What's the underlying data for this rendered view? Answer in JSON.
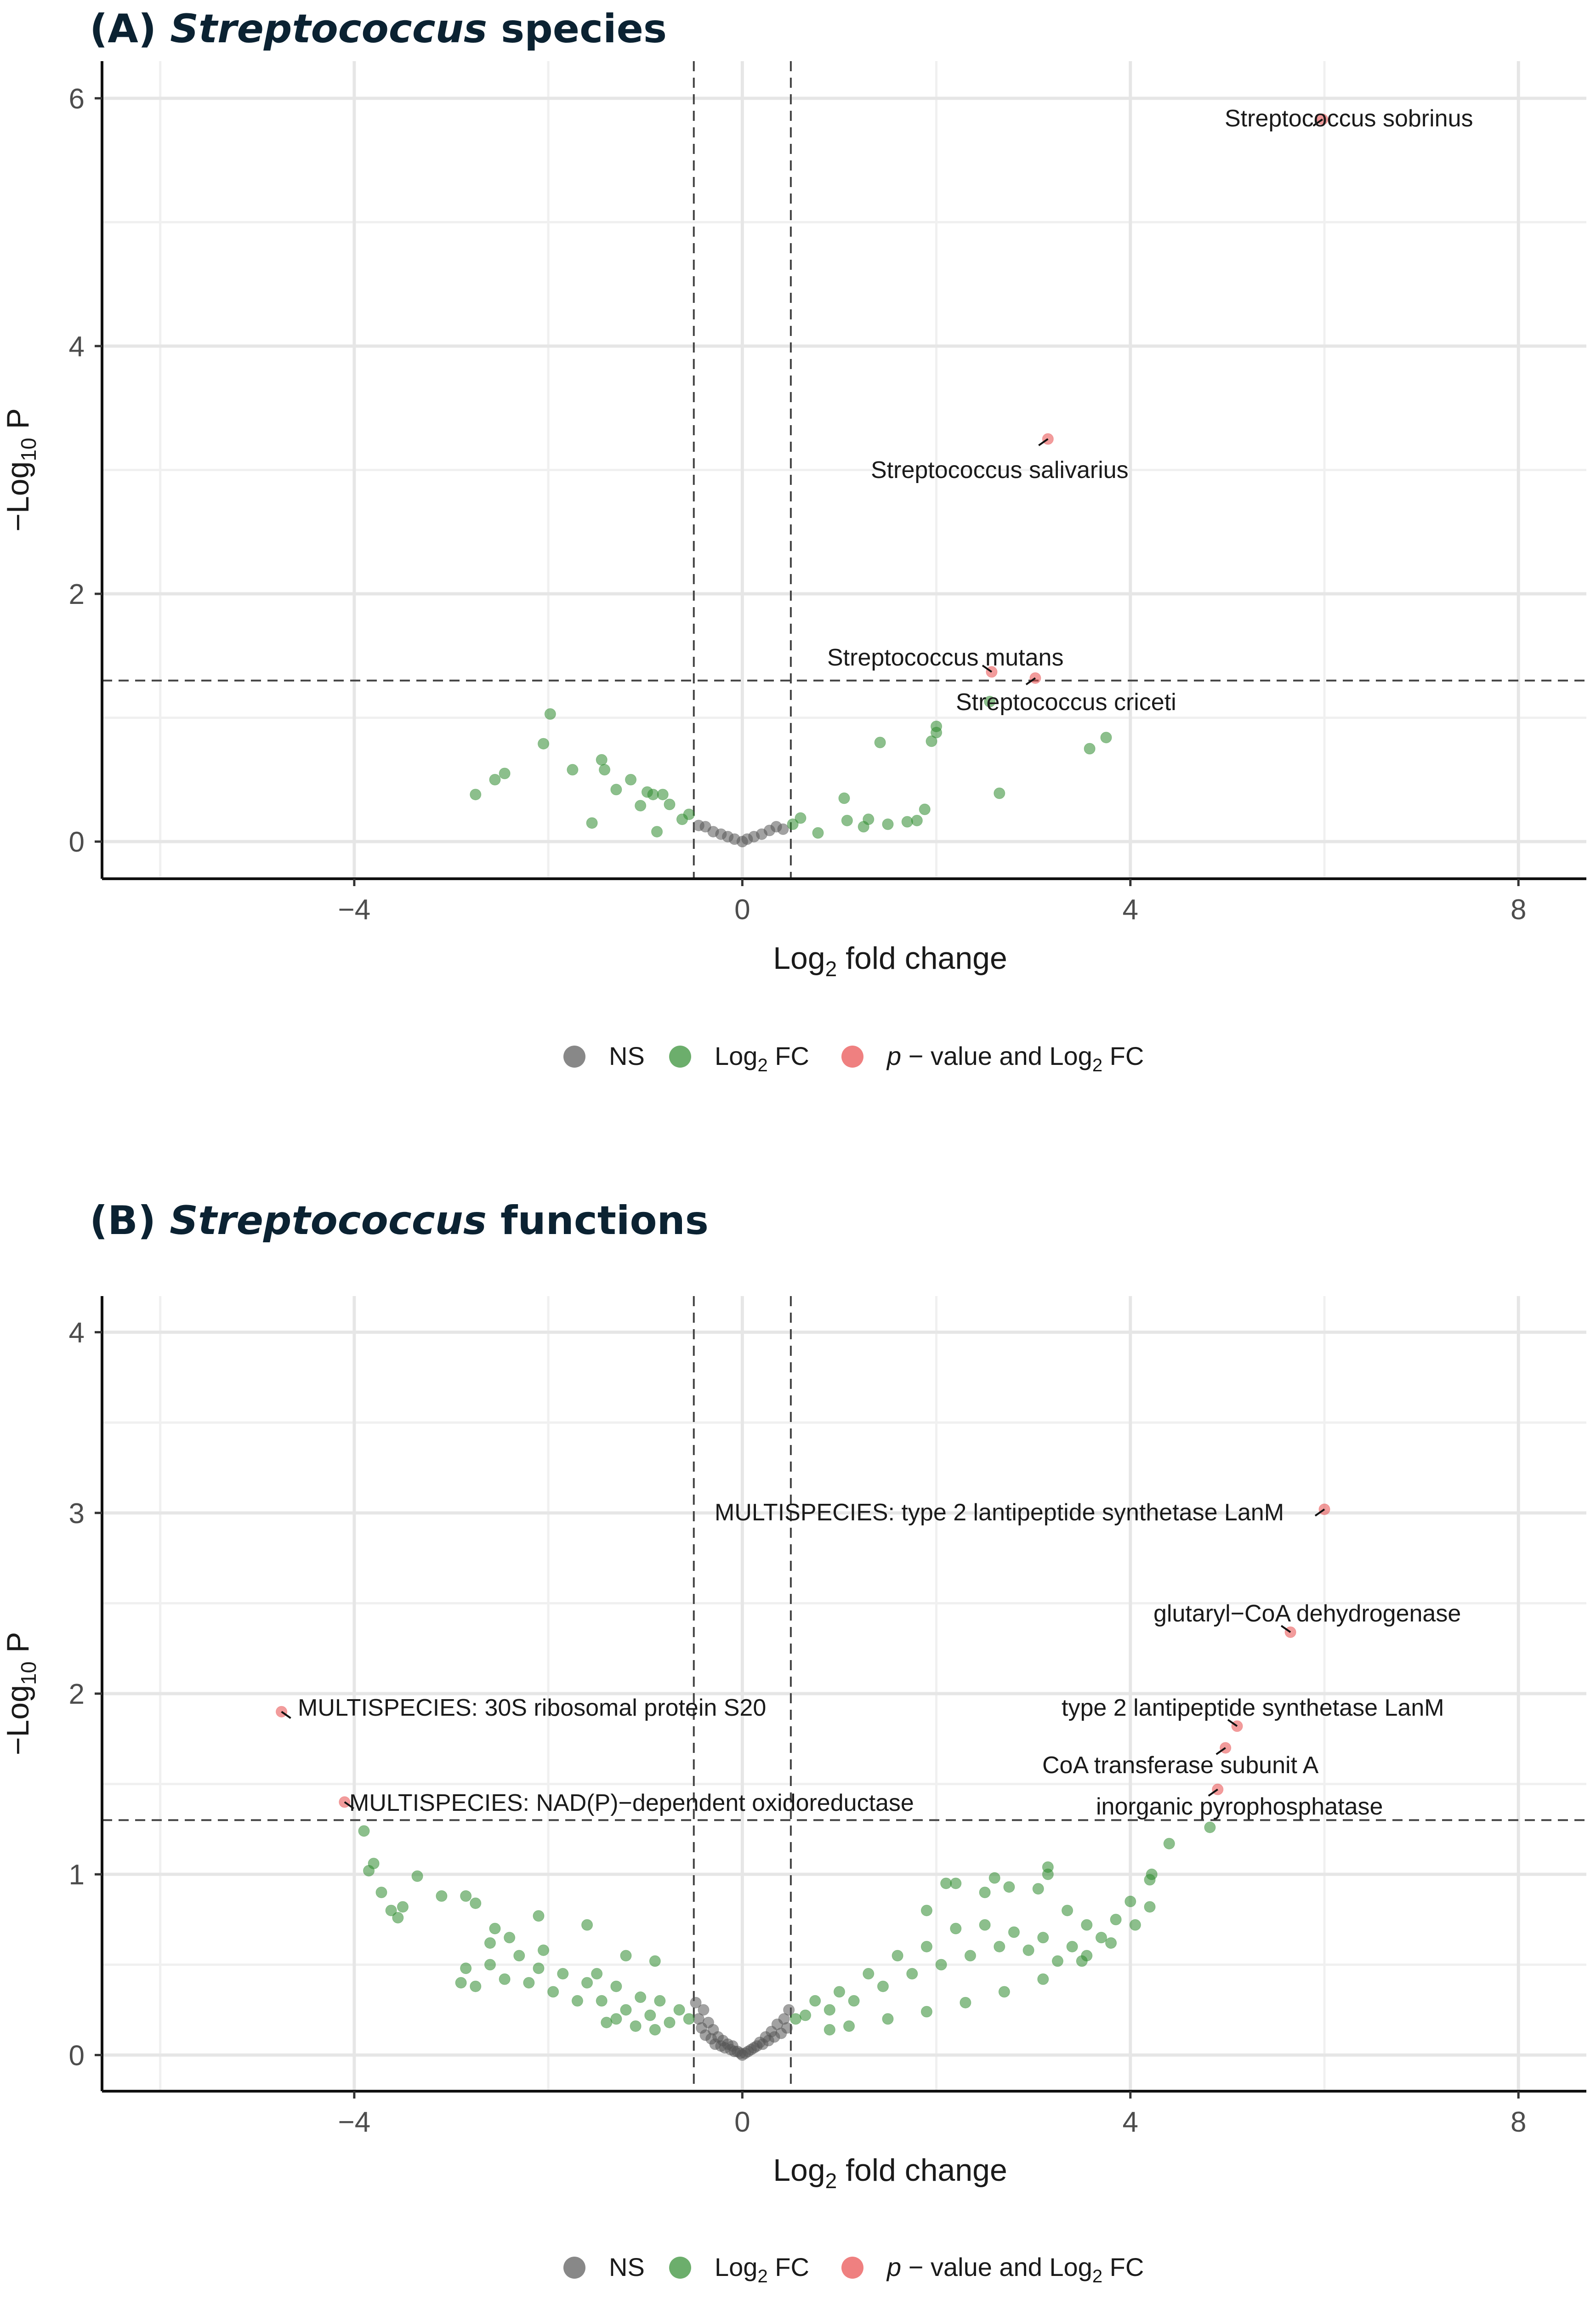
{
  "chart_data": [
    {
      "type": "scatter",
      "title_prefix": "(A) ",
      "title_italic": "Streptococcus",
      "title_suffix": " species",
      "xlabel": "Log",
      "xlabel_sub": "2",
      "xlabel_rest": " fold change",
      "ylabel": "−Log",
      "ylabel_sub": "10",
      "ylabel_rest": " P",
      "xlim": [
        -6.6,
        8.7
      ],
      "ylim": [
        -0.3,
        6.3
      ],
      "xticks": [
        -4,
        0,
        4,
        8
      ],
      "xtick_labels": [
        "−4",
        "0",
        "4",
        "8"
      ],
      "yticks": [
        0,
        2,
        4,
        6
      ],
      "ytick_labels": [
        "0",
        "2",
        "4",
        "6"
      ],
      "fc_cutoffs": [
        -0.5,
        0.5
      ],
      "p_cutoff": 1.3,
      "series": [
        {
          "name": "NS",
          "color": "#555555",
          "points": [
            [
              -0.45,
              0.13
            ],
            [
              -0.38,
              0.12
            ],
            [
              -0.3,
              0.08
            ],
            [
              -0.22,
              0.06
            ],
            [
              -0.15,
              0.04
            ],
            [
              -0.08,
              0.02
            ],
            [
              0.0,
              0.0
            ],
            [
              0.05,
              0.02
            ],
            [
              0.12,
              0.04
            ],
            [
              0.2,
              0.06
            ],
            [
              0.28,
              0.09
            ],
            [
              0.35,
              0.12
            ],
            [
              0.42,
              0.1
            ]
          ]
        },
        {
          "name": "Log2 FC",
          "color": "#2e8b2e",
          "points": [
            [
              -2.75,
              0.38
            ],
            [
              -2.55,
              0.5
            ],
            [
              -2.45,
              0.55
            ],
            [
              -2.05,
              0.79
            ],
            [
              -1.98,
              1.03
            ],
            [
              -1.75,
              0.58
            ],
            [
              -1.55,
              0.15
            ],
            [
              -1.45,
              0.66
            ],
            [
              -1.42,
              0.58
            ],
            [
              -1.3,
              0.42
            ],
            [
              -1.15,
              0.5
            ],
            [
              -1.05,
              0.29
            ],
            [
              -0.98,
              0.4
            ],
            [
              -0.92,
              0.38
            ],
            [
              -0.88,
              0.08
            ],
            [
              -0.82,
              0.38
            ],
            [
              -0.75,
              0.3
            ],
            [
              -0.62,
              0.18
            ],
            [
              -0.55,
              0.22
            ],
            [
              0.52,
              0.14
            ],
            [
              0.6,
              0.19
            ],
            [
              0.78,
              0.07
            ],
            [
              1.05,
              0.35
            ],
            [
              1.08,
              0.17
            ],
            [
              1.25,
              0.12
            ],
            [
              1.3,
              0.18
            ],
            [
              1.42,
              0.8
            ],
            [
              1.5,
              0.14
            ],
            [
              1.7,
              0.16
            ],
            [
              1.8,
              0.17
            ],
            [
              1.88,
              0.26
            ],
            [
              1.95,
              0.81
            ],
            [
              2.0,
              0.88
            ],
            [
              2.0,
              0.93
            ],
            [
              2.55,
              1.13
            ],
            [
              2.65,
              0.39
            ],
            [
              3.58,
              0.75
            ],
            [
              3.75,
              0.84
            ]
          ]
        },
        {
          "name": "p - value and Log2 FC",
          "color": "#e84a4a",
          "points": [
            [
              5.98,
              5.83
            ],
            [
              3.15,
              3.25
            ],
            [
              2.57,
              1.37
            ],
            [
              3.02,
              1.32
            ]
          ]
        }
      ],
      "annotations": [
        {
          "text": "Streptococcus sobrinus",
          "x": 5.98,
          "y": 5.83
        },
        {
          "text": "Streptococcus salivarius",
          "x": 3.15,
          "y": 3.25
        },
        {
          "text": "Streptococcus mutans",
          "x": 2.57,
          "y": 1.37
        },
        {
          "text": "Streptococcus criceti",
          "x": 3.02,
          "y": 1.32
        }
      ]
    },
    {
      "type": "scatter",
      "title_prefix": "(B) ",
      "title_italic": "Streptococcus",
      "title_suffix": " functions",
      "xlabel": "Log",
      "xlabel_sub": "2",
      "xlabel_rest": " fold change",
      "ylabel": "−Log",
      "ylabel_sub": "10",
      "ylabel_rest": " P",
      "xlim": [
        -6.6,
        8.7
      ],
      "ylim": [
        -0.2,
        4.2
      ],
      "xticks": [
        -4,
        0,
        4,
        8
      ],
      "xtick_labels": [
        "−4",
        "0",
        "4",
        "8"
      ],
      "yticks": [
        0,
        1,
        2,
        3,
        4
      ],
      "ytick_labels": [
        "0",
        "1",
        "2",
        "3",
        "4"
      ],
      "fc_cutoffs": [
        -0.5,
        0.5
      ],
      "p_cutoff": 1.3,
      "series": [
        {
          "name": "NS",
          "color": "#555555",
          "points": [
            [
              -0.48,
              0.29
            ],
            [
              -0.45,
              0.2
            ],
            [
              -0.42,
              0.15
            ],
            [
              -0.4,
              0.25
            ],
            [
              -0.38,
              0.11
            ],
            [
              -0.35,
              0.18
            ],
            [
              -0.32,
              0.09
            ],
            [
              -0.3,
              0.14
            ],
            [
              -0.28,
              0.06
            ],
            [
              -0.25,
              0.1
            ],
            [
              -0.22,
              0.05
            ],
            [
              -0.2,
              0.08
            ],
            [
              -0.18,
              0.04
            ],
            [
              -0.15,
              0.06
            ],
            [
              -0.12,
              0.03
            ],
            [
              -0.1,
              0.05
            ],
            [
              -0.08,
              0.02
            ],
            [
              -0.05,
              0.02
            ],
            [
              -0.02,
              0.01
            ],
            [
              0.0,
              0.0
            ],
            [
              0.03,
              0.01
            ],
            [
              0.06,
              0.02
            ],
            [
              0.09,
              0.03
            ],
            [
              0.12,
              0.04
            ],
            [
              0.15,
              0.05
            ],
            [
              0.18,
              0.07
            ],
            [
              0.21,
              0.06
            ],
            [
              0.24,
              0.1
            ],
            [
              0.27,
              0.08
            ],
            [
              0.3,
              0.13
            ],
            [
              0.33,
              0.1
            ],
            [
              0.36,
              0.17
            ],
            [
              0.4,
              0.12
            ],
            [
              0.43,
              0.2
            ],
            [
              0.46,
              0.15
            ],
            [
              0.48,
              0.25
            ]
          ]
        },
        {
          "name": "Log2 FC",
          "color": "#2e8b2e",
          "points": [
            [
              -3.9,
              1.24
            ],
            [
              -3.85,
              1.02
            ],
            [
              -3.8,
              1.06
            ],
            [
              -3.72,
              0.9
            ],
            [
              -3.62,
              0.8
            ],
            [
              -3.55,
              0.76
            ],
            [
              -3.5,
              0.82
            ],
            [
              -3.35,
              0.99
            ],
            [
              -3.1,
              0.88
            ],
            [
              -2.85,
              0.88
            ],
            [
              -2.75,
              0.84
            ],
            [
              -2.6,
              0.62
            ],
            [
              -2.55,
              0.7
            ],
            [
              -2.4,
              0.65
            ],
            [
              -2.1,
              0.77
            ],
            [
              -2.05,
              0.58
            ],
            [
              -1.6,
              0.72
            ],
            [
              -1.5,
              0.45
            ],
            [
              -1.2,
              0.55
            ],
            [
              -0.9,
              0.52
            ],
            [
              -2.9,
              0.4
            ],
            [
              -2.85,
              0.48
            ],
            [
              -2.75,
              0.38
            ],
            [
              -2.6,
              0.5
            ],
            [
              -2.45,
              0.42
            ],
            [
              -2.3,
              0.55
            ],
            [
              -2.2,
              0.4
            ],
            [
              -2.1,
              0.48
            ],
            [
              -1.95,
              0.35
            ],
            [
              -1.85,
              0.45
            ],
            [
              -1.7,
              0.3
            ],
            [
              -1.6,
              0.4
            ],
            [
              -1.45,
              0.3
            ],
            [
              -1.3,
              0.38
            ],
            [
              -1.2,
              0.25
            ],
            [
              -1.05,
              0.32
            ],
            [
              -0.95,
              0.22
            ],
            [
              -0.85,
              0.3
            ],
            [
              -0.75,
              0.18
            ],
            [
              -0.65,
              0.25
            ],
            [
              -0.55,
              0.2
            ],
            [
              0.55,
              0.2
            ],
            [
              0.65,
              0.22
            ],
            [
              0.75,
              0.3
            ],
            [
              0.9,
              0.25
            ],
            [
              1.0,
              0.35
            ],
            [
              1.15,
              0.3
            ],
            [
              1.3,
              0.45
            ],
            [
              1.45,
              0.38
            ],
            [
              1.6,
              0.55
            ],
            [
              1.75,
              0.45
            ],
            [
              1.9,
              0.6
            ],
            [
              2.05,
              0.5
            ],
            [
              2.2,
              0.7
            ],
            [
              2.35,
              0.55
            ],
            [
              2.5,
              0.72
            ],
            [
              2.65,
              0.6
            ],
            [
              2.8,
              0.68
            ],
            [
              2.95,
              0.58
            ],
            [
              3.1,
              0.65
            ],
            [
              3.25,
              0.52
            ],
            [
              3.4,
              0.6
            ],
            [
              3.55,
              0.55
            ],
            [
              3.7,
              0.65
            ],
            [
              3.85,
              0.75
            ],
            [
              4.0,
              0.85
            ],
            [
              2.5,
              0.9
            ],
            [
              2.6,
              0.98
            ],
            [
              2.75,
              0.93
            ],
            [
              3.05,
              0.92
            ],
            [
              3.15,
              1.0
            ],
            [
              3.15,
              1.04
            ],
            [
              3.35,
              0.8
            ],
            [
              3.55,
              0.72
            ],
            [
              2.1,
              0.95
            ],
            [
              2.2,
              0.95
            ],
            [
              1.9,
              0.8
            ],
            [
              4.2,
              0.97
            ],
            [
              4.22,
              1.0
            ],
            [
              4.4,
              1.17
            ],
            [
              4.82,
              1.26
            ],
            [
              -1.4,
              0.18
            ],
            [
              -1.3,
              0.2
            ],
            [
              -1.1,
              0.16
            ],
            [
              -0.9,
              0.14
            ],
            [
              0.9,
              0.14
            ],
            [
              1.1,
              0.16
            ],
            [
              1.5,
              0.2
            ],
            [
              1.9,
              0.24
            ],
            [
              2.3,
              0.29
            ],
            [
              2.7,
              0.35
            ],
            [
              3.1,
              0.42
            ],
            [
              3.5,
              0.52
            ],
            [
              3.8,
              0.62
            ],
            [
              4.05,
              0.72
            ],
            [
              4.2,
              0.82
            ]
          ]
        },
        {
          "name": "p - value and Log2 FC",
          "color": "#e84a4a",
          "points": [
            [
              -4.75,
              1.9
            ],
            [
              -4.1,
              1.4
            ],
            [
              6.0,
              3.02
            ],
            [
              5.65,
              2.34
            ],
            [
              5.1,
              1.82
            ],
            [
              4.98,
              1.7
            ],
            [
              4.9,
              1.47
            ]
          ]
        }
      ],
      "annotations": [
        {
          "text": "MULTISPECIES: type 2 lantipeptide synthetase LanM",
          "x": 6.0,
          "y": 3.02
        },
        {
          "text": "glutaryl−CoA dehydrogenase",
          "x": 5.65,
          "y": 2.34
        },
        {
          "text": "type 2 lantipeptide synthetase LanM",
          "x": 5.1,
          "y": 1.82
        },
        {
          "text": "CoA transferase subunit A",
          "x": 4.98,
          "y": 1.7
        },
        {
          "text": "inorganic pyrophosphatase",
          "x": 4.9,
          "y": 1.47
        },
        {
          "text": "MULTISPECIES: 30S ribosomal protein S20",
          "x": -4.75,
          "y": 1.9
        },
        {
          "text": "MULTISPECIES: NAD(P)−dependent oxidoreductase",
          "x": -4.1,
          "y": 1.4
        }
      ]
    }
  ],
  "legend": {
    "position": "bottom-center",
    "items": [
      {
        "label": "NS",
        "color": "#555555"
      },
      {
        "label": "Log",
        "sub": "2",
        "rest": " FC",
        "color": "#2e8b2e"
      },
      {
        "label_italic": "p",
        "label": " − value and Log",
        "sub": "2",
        "rest": " FC",
        "color": "#e84a4a"
      }
    ]
  }
}
